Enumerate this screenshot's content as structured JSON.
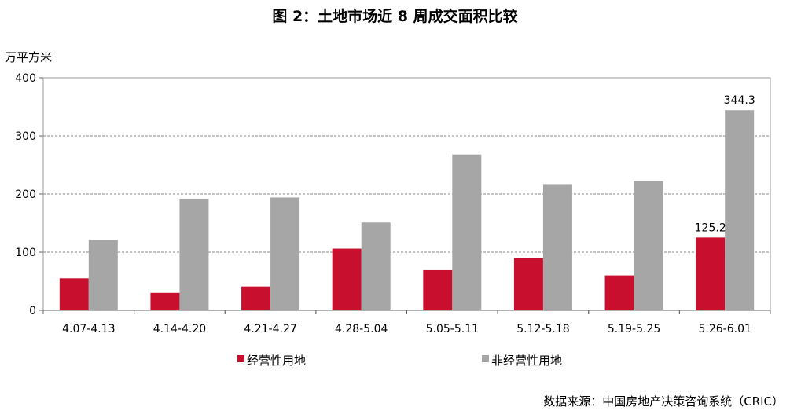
{
  "chart_data": {
    "type": "bar",
    "title": "图 2：土地市场近 8 周成交面积比较",
    "ylabel": "万平方米",
    "xlabel": "",
    "ylim": [
      0,
      400
    ],
    "yticks": [
      0,
      100,
      200,
      300,
      400
    ],
    "grid": true,
    "legend_position": "bottom",
    "categories": [
      "4.07-4.13",
      "4.14-4.20",
      "4.21-4.27",
      "4.28-5.04",
      "5.05-5.11",
      "5.12-5.18",
      "5.19-5.25",
      "5.26-6.01"
    ],
    "series": [
      {
        "name": "经营性用地",
        "color": "#c8102e",
        "values": [
          55,
          30,
          41,
          106,
          69,
          90,
          60,
          125.2
        ]
      },
      {
        "name": "非经营性用地",
        "color": "#a6a6a6",
        "values": [
          121,
          192,
          194,
          151,
          268,
          217,
          222,
          344.3
        ]
      }
    ],
    "data_labels": [
      {
        "series": 0,
        "index": 7,
        "text": "125.2"
      },
      {
        "series": 1,
        "index": 7,
        "text": "344.3"
      }
    ]
  },
  "source": "数据来源：中国房地产决策咨询系统（CRIC）"
}
